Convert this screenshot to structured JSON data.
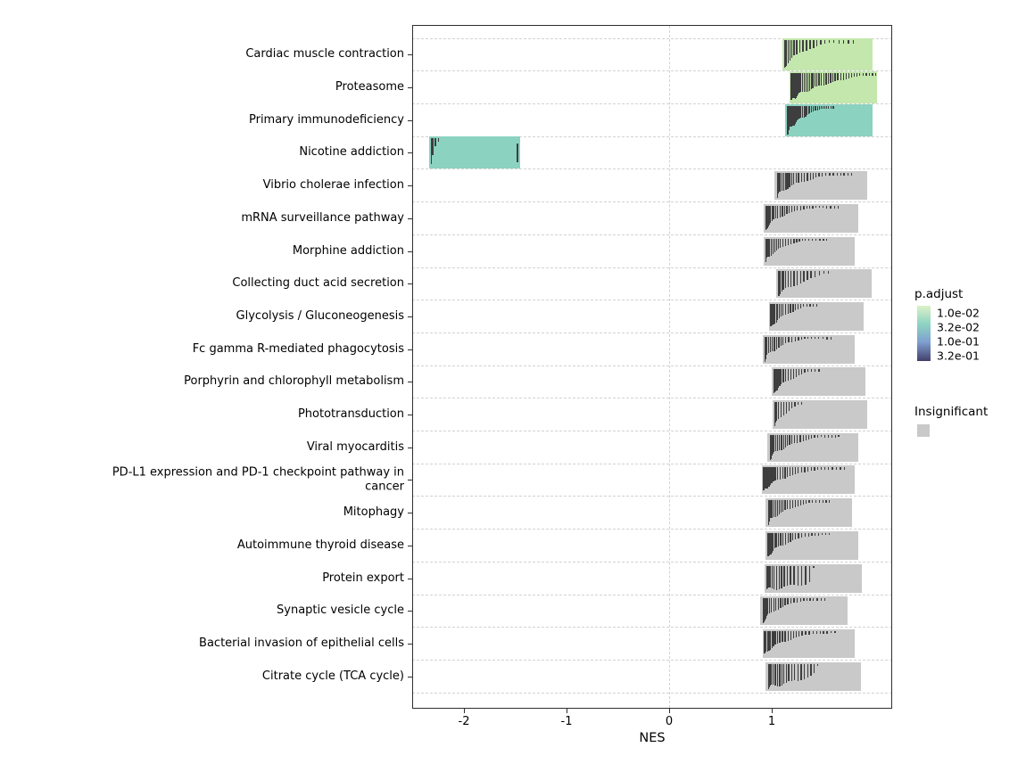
{
  "chart_data": {
    "type": "bar",
    "orientation": "horizontal",
    "title": "",
    "xlabel": "NES",
    "xlim": [
      -2.5,
      2.17
    ],
    "grid": "dashed",
    "zero_line": true,
    "x_ticks": [
      {
        "label": "-2",
        "value": -2
      },
      {
        "label": "-1",
        "value": -1
      },
      {
        "label": "0",
        "value": 0
      },
      {
        "label": "1",
        "value": 1
      }
    ],
    "series": [
      {
        "name": "Cardiac muscle contraction",
        "nes_start": 1.1,
        "nes_end": 1.98,
        "significant": true,
        "color": "#c3e7ad",
        "gene_ticks": {
          "n": 22,
          "decay": 1.6,
          "spread": 0.8
        }
      },
      {
        "name": "Proteasome",
        "nes_start": 1.17,
        "nes_end": 2.03,
        "significant": true,
        "color": "#c3e7ad",
        "gene_ticks": {
          "n": 42,
          "decay": 1.1,
          "spread": 1.0
        }
      },
      {
        "name": "Primary immunodeficiency",
        "nes_start": 1.13,
        "nes_end": 1.98,
        "significant": true,
        "color": "#8bd2c0",
        "gene_ticks": {
          "n": 34,
          "decay": 1.3,
          "spread": 0.55
        }
      },
      {
        "name": "Nicotine addiction",
        "nes_start": -2.34,
        "nes_end": -1.45,
        "significant": true,
        "color": "#8bd2c0",
        "gene_ticks": {
          "n": 4,
          "decay": 1.2,
          "spread": 0.08
        },
        "end_tick": true
      },
      {
        "name": "Vibrio cholerae infection",
        "nes_start": 1.03,
        "nes_end": 1.93,
        "significant": false,
        "color": "#c9c9c9",
        "gene_ticks": {
          "n": 30,
          "decay": 1.5,
          "spread": 0.85
        }
      },
      {
        "name": "mRNA surveillance pathway",
        "nes_start": 0.92,
        "nes_end": 1.84,
        "significant": false,
        "color": "#c9c9c9",
        "gene_ticks": {
          "n": 30,
          "decay": 1.8,
          "spread": 0.8
        }
      },
      {
        "name": "Morphine addiction",
        "nes_start": 0.92,
        "nes_end": 1.81,
        "significant": false,
        "color": "#c9c9c9",
        "gene_ticks": {
          "n": 26,
          "decay": 1.8,
          "spread": 0.7
        }
      },
      {
        "name": "Collecting duct acid secretion",
        "nes_start": 1.04,
        "nes_end": 1.97,
        "significant": false,
        "color": "#c9c9c9",
        "gene_ticks": {
          "n": 18,
          "decay": 0.8,
          "spread": 0.55
        }
      },
      {
        "name": "Glycolysis / Gluconeogenesis",
        "nes_start": 0.97,
        "nes_end": 1.9,
        "significant": false,
        "color": "#c9c9c9",
        "gene_ticks": {
          "n": 22,
          "decay": 1.2,
          "spread": 0.5
        }
      },
      {
        "name": "Fc gamma R-mediated phagocytosis",
        "nes_start": 0.91,
        "nes_end": 1.81,
        "significant": false,
        "color": "#c9c9c9",
        "gene_ticks": {
          "n": 26,
          "decay": 1.8,
          "spread": 0.75
        }
      },
      {
        "name": "Porphyrin and chlorophyll metabolism",
        "nes_start": 1.0,
        "nes_end": 1.91,
        "significant": false,
        "color": "#c9c9c9",
        "gene_ticks": {
          "n": 20,
          "decay": 1.2,
          "spread": 0.5
        }
      },
      {
        "name": "Phototransduction",
        "nes_start": 1.01,
        "nes_end": 1.93,
        "significant": false,
        "color": "#c9c9c9",
        "gene_ticks": {
          "n": 12,
          "decay": 1.0,
          "spread": 0.3
        }
      },
      {
        "name": "Viral myocarditis",
        "nes_start": 0.96,
        "nes_end": 1.84,
        "significant": false,
        "color": "#c9c9c9",
        "gene_ticks": {
          "n": 30,
          "decay": 1.4,
          "spread": 0.8
        }
      },
      {
        "name": "PD-L1 expression and PD-1 checkpoint pathway in cancer",
        "nes_start": 0.9,
        "nes_end": 1.81,
        "significant": false,
        "color": "#c9c9c9",
        "gene_ticks": {
          "n": 32,
          "decay": 1.6,
          "spread": 0.9
        }
      },
      {
        "name": "Mitophagy",
        "nes_start": 0.94,
        "nes_end": 1.78,
        "significant": false,
        "color": "#c9c9c9",
        "gene_ticks": {
          "n": 28,
          "decay": 1.4,
          "spread": 0.75
        }
      },
      {
        "name": "Autoimmune thyroid disease",
        "nes_start": 0.94,
        "nes_end": 1.84,
        "significant": false,
        "color": "#c9c9c9",
        "gene_ticks": {
          "n": 26,
          "decay": 1.4,
          "spread": 0.7
        }
      },
      {
        "name": "Protein export",
        "nes_start": 0.93,
        "nes_end": 1.88,
        "significant": false,
        "color": "#c9c9c9",
        "gene_ticks": {
          "n": 18,
          "decay": 0.15,
          "spread": 0.5
        }
      },
      {
        "name": "Synaptic vesicle cycle",
        "nes_start": 0.89,
        "nes_end": 1.74,
        "significant": false,
        "color": "#c9c9c9",
        "gene_ticks": {
          "n": 26,
          "decay": 1.6,
          "spread": 0.75
        }
      },
      {
        "name": "Bacterial invasion of epithelial cells",
        "nes_start": 0.91,
        "nes_end": 1.81,
        "significant": false,
        "color": "#c9c9c9",
        "gene_ticks": {
          "n": 28,
          "decay": 1.5,
          "spread": 0.8
        }
      },
      {
        "name": "Citrate cycle (TCA cycle)",
        "nes_start": 0.94,
        "nes_end": 1.87,
        "significant": false,
        "color": "#c9c9c9",
        "gene_ticks": {
          "n": 22,
          "decay": 0.3,
          "spread": 0.55
        }
      }
    ]
  },
  "legend": {
    "padjust": {
      "title": "p.adjust",
      "labels": [
        "1.0e-02",
        "3.2e-02",
        "1.0e-01",
        "3.2e-01"
      ],
      "gradient": [
        "#dcf1c7",
        "#8ed4c2",
        "#7e9fd0",
        "#43406b"
      ]
    },
    "insignificant": {
      "title": "Insignificant",
      "color": "#c9c9c9"
    }
  },
  "colors": {
    "bar_significant_green": "#c3e7ad",
    "bar_significant_teal": "#8bd2c0",
    "bar_insignificant": "#c9c9c9",
    "gene_tick": "#3e3e3e",
    "gridline": "#d2d2d2",
    "panel_border": "#2e2e2e"
  }
}
